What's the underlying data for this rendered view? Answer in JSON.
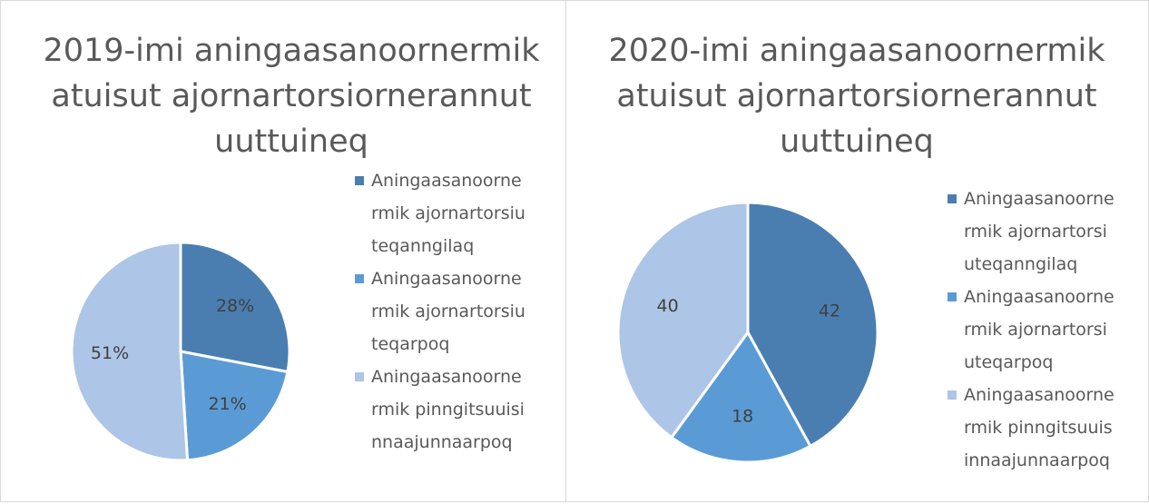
{
  "chart_data": [
    {
      "type": "pie",
      "title": "2019-imi aningaasanoornermik atuisut ajornartorsiornerannut uuttuineq",
      "categories": [
        "Aningaasanoornermik ajornartorsiuteqanngilaq",
        "Aningaasanoornermik ajornartorsiuteqarpoq",
        "Aningaasanoornermik pinngitsuuisinnaajunnaarpoq"
      ],
      "values": [
        28,
        21,
        51
      ],
      "value_labels": [
        "28%",
        "21%",
        "51%"
      ],
      "colors": [
        "#4a7eb1",
        "#5b9bd5",
        "#adc5e6"
      ],
      "legend": "right"
    },
    {
      "type": "pie",
      "title": "2020-imi aningaasanoornermik atuisut ajornartorsiornerannut uuttuineq",
      "categories": [
        "Aningaasanoornermik ajornartorsiuteqanngilaq",
        "Aningaasanoornermik ajornartorsiuteqarpoq",
        "Aningaasanoornermik pinngitsuuisinnaajunnaarpoq"
      ],
      "values": [
        42,
        18,
        40
      ],
      "colors": [
        "#4a7eb1",
        "#5b9bd5",
        "#adc5e6"
      ],
      "legend": "right"
    }
  ]
}
